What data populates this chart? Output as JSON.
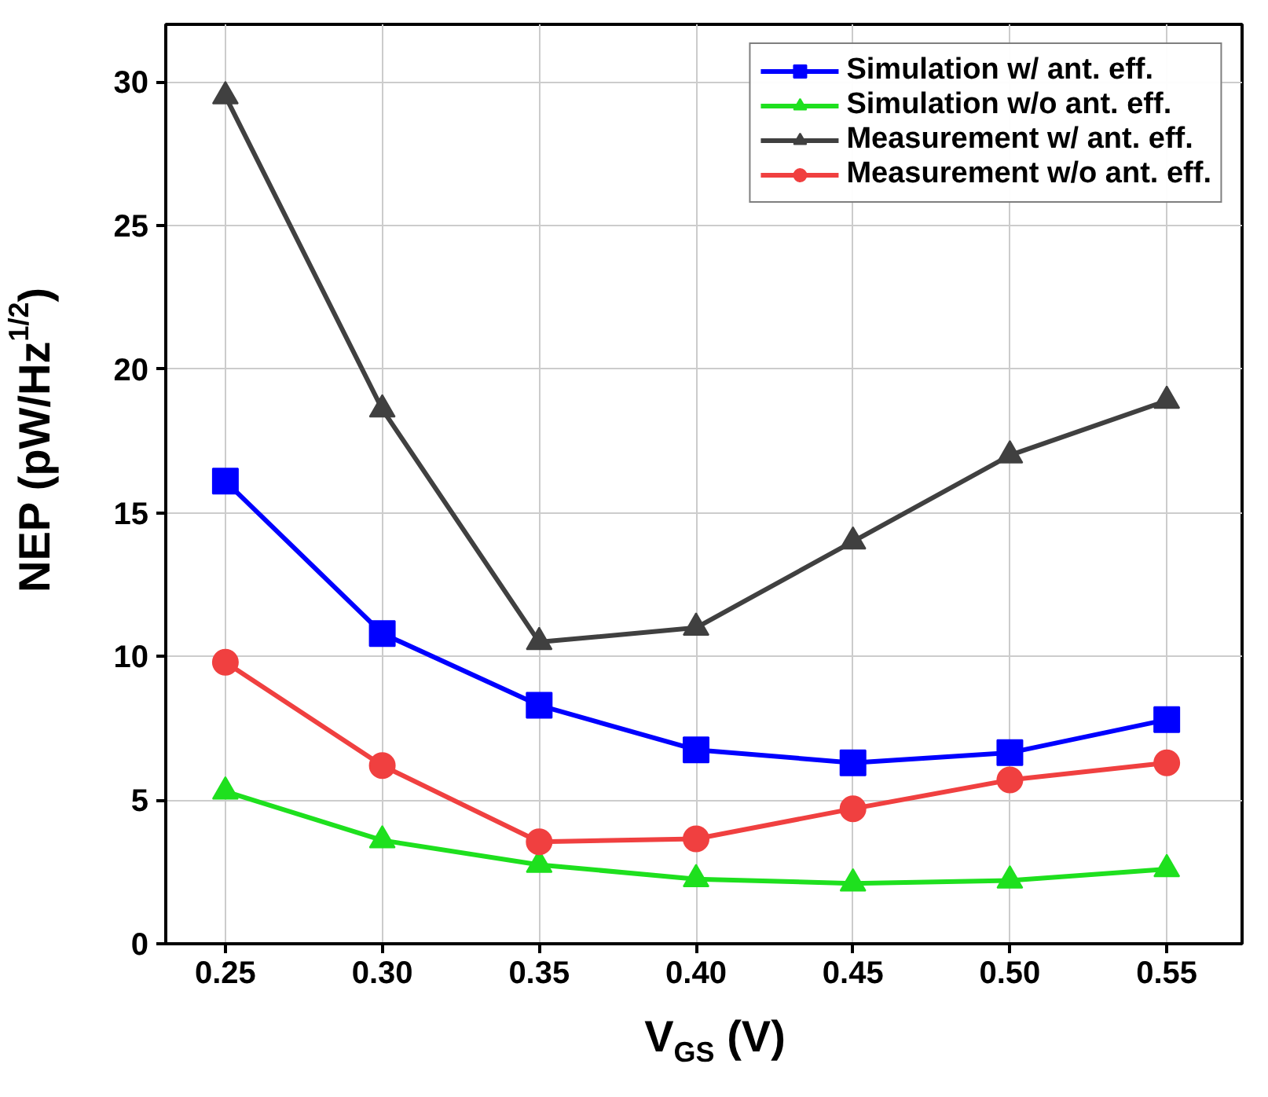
{
  "chart_data": {
    "type": "line",
    "xlabel": "V$_{GS}$ (V)",
    "ylabel": "NEP (pW/Hz$^{1/2}$)",
    "x": [
      0.25,
      0.3,
      0.35,
      0.4,
      0.45,
      0.5,
      0.55
    ],
    "xlim": [
      0.231,
      0.574
    ],
    "xticks": [
      {
        "value": 0.25,
        "label": "0.25"
      },
      {
        "value": 0.3,
        "label": "0.30"
      },
      {
        "value": 0.35,
        "label": "0.35"
      },
      {
        "value": 0.4,
        "label": "0.40"
      },
      {
        "value": 0.45,
        "label": "0.45"
      },
      {
        "value": 0.5,
        "label": "0.50"
      },
      {
        "value": 0.55,
        "label": "0.55"
      }
    ],
    "ylim": [
      0,
      32
    ],
    "yticks": [
      0,
      5,
      10,
      15,
      20,
      25,
      30
    ],
    "grid": true,
    "legend": "top right",
    "line_style": "solid",
    "series": [
      {
        "name": "Simulation w/ ant. eff.",
        "color": "#0000ff",
        "marker": "square",
        "values": [
          16.1,
          10.8,
          8.3,
          6.75,
          6.3,
          6.65,
          7.8
        ]
      },
      {
        "name": "Simulation w/o ant. eff.",
        "color": "#1ee01e",
        "marker": "triangle",
        "values": [
          5.3,
          3.6,
          2.75,
          2.25,
          2.1,
          2.2,
          2.6
        ]
      },
      {
        "name": "Measurement w/ ant. eff.",
        "color": "#404040",
        "marker": "triangle",
        "values": [
          29.5,
          18.6,
          10.5,
          11.0,
          14.0,
          17.0,
          18.9
        ]
      },
      {
        "name": "Measurement w/o ant. eff.",
        "color": "#f04040",
        "marker": "circle",
        "values": [
          9.8,
          6.2,
          3.55,
          3.65,
          4.7,
          5.7,
          6.3
        ]
      }
    ]
  }
}
